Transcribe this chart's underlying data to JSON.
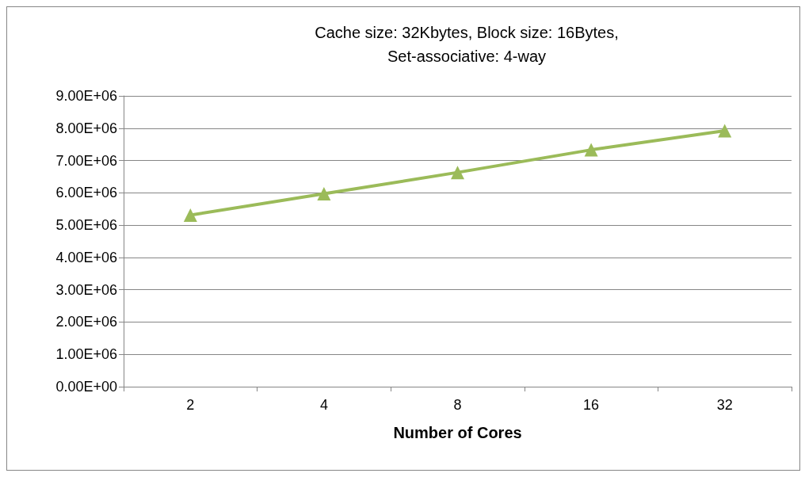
{
  "chart_data": {
    "type": "line",
    "title": "Cache size: 32Kbytes, Block size: 16Bytes,\nSet-associative: 4-way",
    "xlabel": "Number of Cores",
    "categories": [
      "2",
      "4",
      "8",
      "16",
      "32"
    ],
    "series": [
      {
        "color": "#9bbb59",
        "values": [
          5310000,
          5970000,
          6630000,
          7330000,
          7920000
        ]
      }
    ],
    "ylim": [
      0,
      9000000
    ],
    "yticks": [
      {
        "value": 0,
        "label": "0.00E+00"
      },
      {
        "value": 1000000,
        "label": "1.00E+06"
      },
      {
        "value": 2000000,
        "label": "2.00E+06"
      },
      {
        "value": 3000000,
        "label": "3.00E+06"
      },
      {
        "value": 4000000,
        "label": "4.00E+06"
      },
      {
        "value": 5000000,
        "label": "5.00E+06"
      },
      {
        "value": 6000000,
        "label": "6.00E+06"
      },
      {
        "value": 7000000,
        "label": "7.00E+06"
      },
      {
        "value": 8000000,
        "label": "8.00E+06"
      },
      {
        "value": 9000000,
        "label": "9.00E+06"
      }
    ],
    "grid": "y",
    "marker": "triangle",
    "line_style": "solid"
  }
}
